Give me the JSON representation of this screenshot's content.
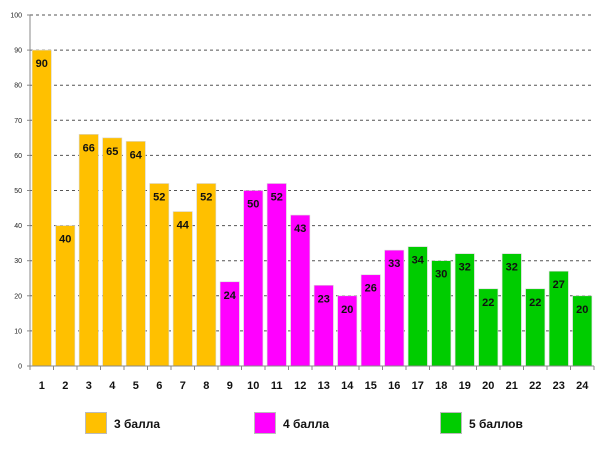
{
  "chart_data": {
    "type": "bar",
    "title": "",
    "xlabel": "",
    "ylabel": "",
    "ylim": [
      0,
      100
    ],
    "yticks": [
      "0",
      "10",
      "20",
      "30",
      "40",
      "50",
      "60",
      "70",
      "80",
      "90",
      "100"
    ],
    "grid": "dashed-horizontal",
    "categories": [
      "1",
      "2",
      "3",
      "4",
      "5",
      "6",
      "7",
      "8",
      "9",
      "10",
      "11",
      "12",
      "13",
      "14",
      "15",
      "16",
      "17",
      "18",
      "19",
      "20",
      "21",
      "22",
      "23",
      "24"
    ],
    "values": [
      90,
      40,
      66,
      65,
      64,
      52,
      44,
      52,
      24,
      50,
      52,
      43,
      23,
      20,
      26,
      33,
      34,
      30,
      32,
      22,
      32,
      22,
      27,
      20
    ],
    "data_labels": [
      "90",
      "40",
      "66",
      "65",
      "64",
      "52",
      "44",
      "52",
      "24",
      "50",
      "52",
      "43",
      "23",
      "20",
      "26",
      "33",
      "34",
      "30",
      "32",
      "22",
      "32",
      "22",
      "27",
      "20"
    ],
    "groups": [
      0,
      0,
      0,
      0,
      0,
      0,
      0,
      0,
      1,
      1,
      1,
      1,
      1,
      1,
      1,
      1,
      2,
      2,
      2,
      2,
      2,
      2,
      2,
      2
    ],
    "legend": [
      {
        "label": "3 балла",
        "color": "#FFC000"
      },
      {
        "label": "4 балла",
        "color": "#FF00FF"
      },
      {
        "label": "5 баллов",
        "color": "#00CC00"
      }
    ],
    "legend_placement": "bottom"
  }
}
